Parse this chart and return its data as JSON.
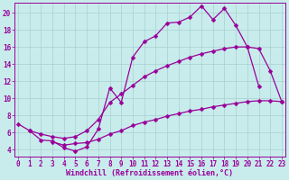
{
  "bg_color": "#c8ecec",
  "grid_color": "#a8d0d0",
  "line_color": "#990099",
  "markersize": 2.5,
  "linewidth": 0.9,
  "xlabel": "Windchill (Refroidissement éolien,°C)",
  "xlabel_fontsize": 6.0,
  "tick_fontsize": 5.5,
  "xlim": [
    -0.3,
    23.3
  ],
  "ylim": [
    3.2,
    21.2
  ],
  "yticks": [
    4,
    6,
    8,
    10,
    12,
    14,
    16,
    18,
    20
  ],
  "xticks": [
    0,
    1,
    2,
    3,
    4,
    5,
    6,
    7,
    8,
    9,
    10,
    11,
    12,
    13,
    14,
    15,
    16,
    17,
    18,
    19,
    20,
    21,
    22,
    23
  ],
  "curve1_x": [
    0,
    1,
    2,
    3,
    4,
    5,
    6,
    7,
    8,
    9,
    10,
    11,
    12,
    13,
    14,
    15,
    16,
    17,
    18,
    19,
    20,
    21
  ],
  "curve1_y": [
    7.0,
    6.2,
    5.1,
    5.0,
    4.2,
    3.8,
    4.3,
    6.4,
    11.2,
    9.5,
    14.8,
    16.6,
    17.3,
    18.8,
    18.9,
    19.5,
    20.8,
    19.2,
    20.5,
    18.5,
    16.0,
    11.4
  ],
  "curve2_x": [
    1,
    2,
    3,
    4,
    5,
    6,
    7,
    8,
    9,
    10,
    11,
    12,
    13,
    14,
    15,
    16,
    17,
    18,
    19,
    20,
    21,
    22,
    23
  ],
  "curve2_y": [
    6.2,
    5.8,
    5.5,
    5.3,
    5.5,
    6.2,
    7.5,
    9.5,
    10.5,
    11.5,
    12.5,
    13.2,
    13.8,
    14.3,
    14.8,
    15.2,
    15.5,
    15.8,
    16.0,
    16.0,
    15.8,
    13.2,
    9.6
  ],
  "curve3_x": [
    3,
    4,
    5,
    6,
    7,
    8,
    9,
    10,
    11,
    12,
    13,
    14,
    15,
    16,
    17,
    18,
    19,
    20,
    21,
    22,
    23
  ],
  "curve3_y": [
    4.9,
    4.5,
    4.7,
    4.8,
    5.2,
    5.8,
    6.2,
    6.8,
    7.2,
    7.5,
    7.9,
    8.2,
    8.5,
    8.7,
    9.0,
    9.2,
    9.4,
    9.6,
    9.7,
    9.7,
    9.6
  ]
}
